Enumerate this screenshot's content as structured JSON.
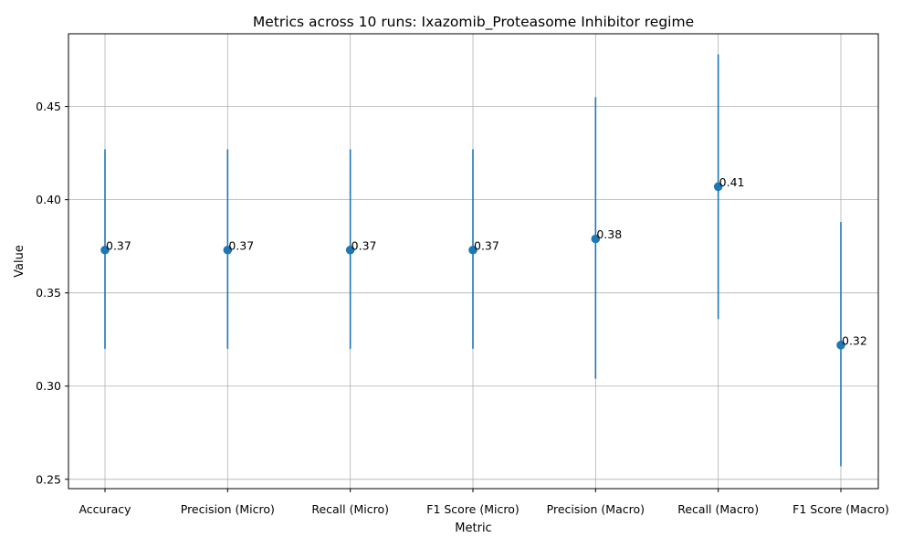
{
  "chart_data": {
    "type": "scatter",
    "title": "Metrics across 10 runs: Ixazomib_Proteasome Inhibitor regime",
    "xlabel": "Metric",
    "ylabel": "Value",
    "categories": [
      "Accuracy",
      "Precision (Micro)",
      "Recall (Micro)",
      "F1 Score (Micro)",
      "Precision (Macro)",
      "Recall (Macro)",
      "F1 Score (Macro)"
    ],
    "values": [
      0.373,
      0.373,
      0.373,
      0.373,
      0.379,
      0.407,
      0.322
    ],
    "error_low": [
      0.32,
      0.32,
      0.32,
      0.32,
      0.304,
      0.336,
      0.257
    ],
    "error_high": [
      0.427,
      0.427,
      0.427,
      0.427,
      0.455,
      0.478,
      0.388
    ],
    "value_labels": [
      "0.37",
      "0.37",
      "0.37",
      "0.37",
      "0.38",
      "0.41",
      "0.32"
    ],
    "ylim": [
      0.245,
      0.489
    ],
    "yticks": [
      0.25,
      0.3,
      0.35,
      0.4,
      0.45
    ],
    "ytick_labels": [
      "0.25",
      "0.30",
      "0.35",
      "0.40",
      "0.45"
    ],
    "grid": true,
    "color": "#1f77b4"
  }
}
